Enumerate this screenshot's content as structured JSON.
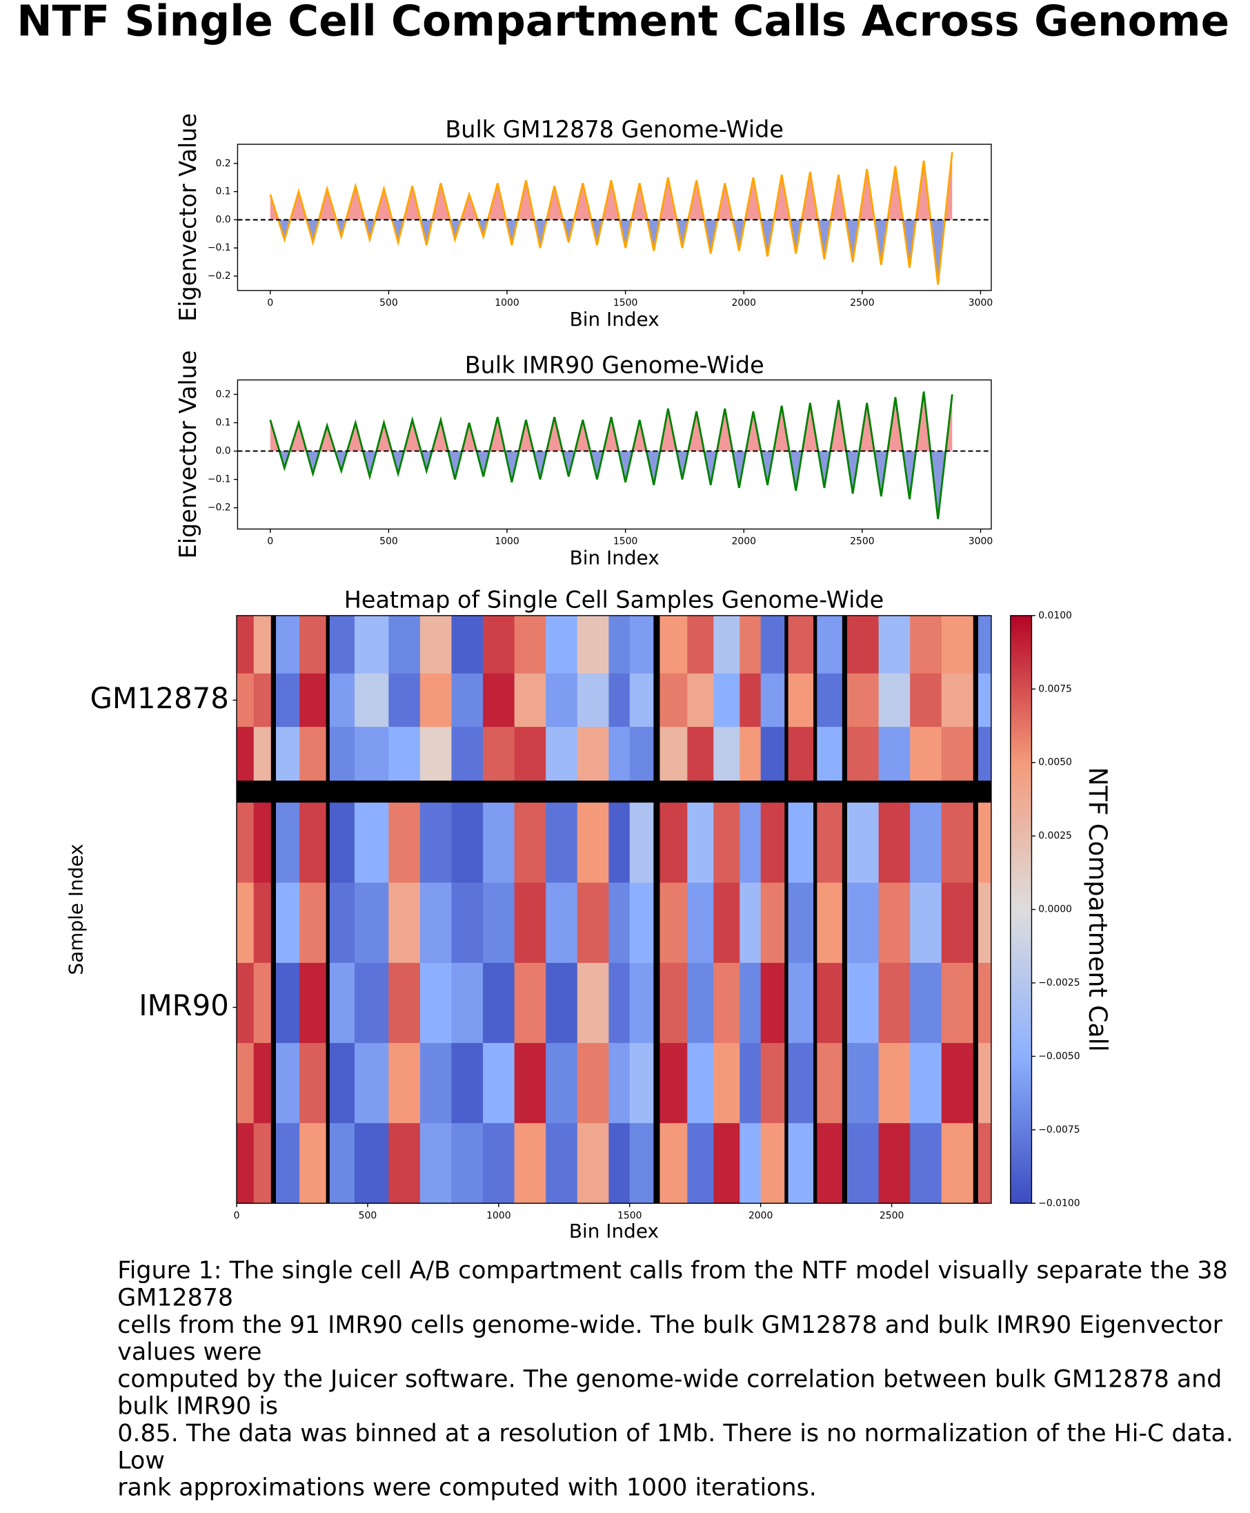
{
  "suptitle": "NTF Single Cell Compartment Calls Across Genome",
  "chart_data": [
    {
      "type": "line",
      "title": "Bulk GM12878 Genome-Wide",
      "xlabel": "Bin Index",
      "ylabel": "Eigenvector Value",
      "x": [
        0,
        60,
        120,
        180,
        240,
        300,
        360,
        420,
        480,
        540,
        600,
        660,
        720,
        780,
        840,
        900,
        960,
        1020,
        1080,
        1140,
        1200,
        1260,
        1320,
        1380,
        1440,
        1500,
        1560,
        1620,
        1680,
        1740,
        1800,
        1860,
        1920,
        1980,
        2040,
        2100,
        2160,
        2220,
        2280,
        2340,
        2400,
        2460,
        2520,
        2580,
        2640,
        2700,
        2760,
        2820,
        2880
      ],
      "values": [
        0.09,
        -0.07,
        0.1,
        -0.08,
        0.11,
        -0.06,
        0.12,
        -0.07,
        0.11,
        -0.08,
        0.12,
        -0.09,
        0.13,
        -0.07,
        0.09,
        -0.06,
        0.13,
        -0.09,
        0.14,
        -0.1,
        0.12,
        -0.08,
        0.13,
        -0.09,
        0.14,
        -0.1,
        0.13,
        -0.11,
        0.15,
        -0.1,
        0.14,
        -0.12,
        0.13,
        -0.11,
        0.15,
        -0.13,
        0.16,
        -0.12,
        0.17,
        -0.14,
        0.16,
        -0.15,
        0.18,
        -0.16,
        0.19,
        -0.17,
        0.21,
        -0.23,
        0.24
      ],
      "color": "#ffa500",
      "fill_positive": "#f08080",
      "fill_negative": "#6b7fd7",
      "hline": 0,
      "xlim": [
        -138,
        3045
      ],
      "xticks": [
        0,
        500,
        1000,
        1500,
        2000,
        2500,
        3000
      ],
      "ylim": [
        -0.251,
        0.268
      ],
      "yticks": [
        {
          "value": -0.2,
          "label": "−0.2"
        },
        {
          "value": -0.1,
          "label": "−0.1"
        },
        {
          "value": 0,
          "label": "0.0"
        },
        {
          "value": 0.1,
          "label": "0.1"
        },
        {
          "value": 0.2,
          "label": "0.2"
        }
      ]
    },
    {
      "type": "line",
      "title": "Bulk IMR90 Genome-Wide",
      "xlabel": "Bin Index",
      "ylabel": "Eigenvector Value",
      "x": [
        0,
        60,
        120,
        180,
        240,
        300,
        360,
        420,
        480,
        540,
        600,
        660,
        720,
        780,
        840,
        900,
        960,
        1020,
        1080,
        1140,
        1200,
        1260,
        1320,
        1380,
        1440,
        1500,
        1560,
        1620,
        1680,
        1740,
        1800,
        1860,
        1920,
        1980,
        2040,
        2100,
        2160,
        2220,
        2280,
        2340,
        2400,
        2460,
        2520,
        2580,
        2640,
        2700,
        2760,
        2820,
        2880
      ],
      "values": [
        0.11,
        -0.06,
        0.1,
        -0.08,
        0.09,
        -0.07,
        0.1,
        -0.09,
        0.1,
        -0.08,
        0.11,
        -0.07,
        0.11,
        -0.1,
        0.1,
        -0.09,
        0.12,
        -0.11,
        0.11,
        -0.1,
        0.12,
        -0.09,
        0.11,
        -0.1,
        0.12,
        -0.11,
        0.11,
        -0.12,
        0.15,
        -0.1,
        0.14,
        -0.12,
        0.15,
        -0.13,
        0.14,
        -0.12,
        0.16,
        -0.14,
        0.17,
        -0.13,
        0.18,
        -0.15,
        0.17,
        -0.16,
        0.19,
        -0.17,
        0.21,
        -0.24,
        0.2
      ],
      "color": "#008000",
      "fill_positive": "#f08080",
      "fill_negative": "#6b7fd7",
      "hline": 0,
      "xlim": [
        -138,
        3045
      ],
      "xticks": [
        0,
        500,
        1000,
        1500,
        2000,
        2500,
        3000
      ],
      "ylim": [
        -0.275,
        0.251
      ],
      "yticks": [
        {
          "value": -0.2,
          "label": "−0.2"
        },
        {
          "value": -0.1,
          "label": "−0.1"
        },
        {
          "value": 0,
          "label": "0.0"
        },
        {
          "value": 0.1,
          "label": "0.1"
        },
        {
          "value": 0.2,
          "label": "0.2"
        }
      ]
    },
    {
      "type": "heatmap",
      "title": "Heatmap of Single Cell Samples Genome-Wide",
      "xlabel": "Bin Index",
      "ylabel": "Sample Index",
      "colormap": "coolwarm",
      "nan_color": "#000000",
      "x_edges": [
        0,
        65,
        130,
        150,
        240,
        340,
        355,
        450,
        580,
        700,
        820,
        940,
        1060,
        1180,
        1300,
        1420,
        1500,
        1590,
        1615,
        1720,
        1820,
        1920,
        2000,
        2090,
        2105,
        2200,
        2215,
        2310,
        2330,
        2450,
        2570,
        2690,
        2810,
        2830,
        2880
      ],
      "y_edges": [
        0,
        13,
        25,
        37,
        42,
        60,
        78,
        96,
        114,
        132
      ],
      "values": [
        [
          0.008,
          0.004,
          null,
          -0.006,
          0.007,
          null,
          -0.008,
          -0.004,
          -0.007,
          0.003,
          -0.009,
          0.008,
          0.006,
          -0.005,
          0.002,
          -0.007,
          -0.006,
          null,
          0.005,
          0.007,
          -0.003,
          0.006,
          -0.008,
          null,
          0.007,
          null,
          -0.006,
          null,
          0.008,
          -0.004,
          0.006,
          0.005,
          null,
          -0.007
        ],
        [
          0.006,
          0.007,
          null,
          -0.008,
          0.009,
          null,
          -0.006,
          -0.002,
          -0.008,
          0.005,
          -0.007,
          0.009,
          0.004,
          -0.006,
          -0.003,
          -0.008,
          -0.004,
          null,
          0.006,
          0.004,
          -0.005,
          0.008,
          -0.006,
          null,
          0.005,
          null,
          -0.008,
          null,
          0.006,
          -0.002,
          0.007,
          0.004,
          null,
          -0.005
        ],
        [
          0.009,
          0.003,
          null,
          -0.004,
          0.006,
          null,
          -0.007,
          -0.006,
          -0.005,
          0.001,
          -0.008,
          0.007,
          0.008,
          -0.004,
          0.004,
          -0.006,
          -0.007,
          null,
          0.003,
          0.008,
          -0.002,
          0.005,
          -0.009,
          null,
          0.008,
          null,
          -0.005,
          null,
          0.007,
          -0.006,
          0.005,
          0.006,
          null,
          -0.008
        ],
        [
          null,
          null,
          null,
          null,
          null,
          null,
          null,
          null,
          null,
          null,
          null,
          null,
          null,
          null,
          null,
          null,
          null,
          null,
          null,
          null,
          null,
          null,
          null,
          null,
          null,
          null,
          null,
          null,
          null,
          null,
          null,
          null,
          null,
          null
        ],
        [
          0.007,
          0.009,
          null,
          -0.007,
          0.008,
          null,
          -0.009,
          -0.005,
          0.006,
          -0.008,
          -0.009,
          -0.006,
          0.007,
          -0.008,
          0.005,
          -0.009,
          -0.003,
          null,
          0.008,
          -0.004,
          0.007,
          -0.006,
          0.008,
          null,
          -0.005,
          null,
          0.007,
          null,
          -0.004,
          0.008,
          -0.006,
          0.007,
          null,
          0.005
        ],
        [
          0.005,
          0.008,
          null,
          -0.005,
          0.006,
          null,
          -0.008,
          -0.007,
          0.004,
          -0.006,
          -0.008,
          -0.007,
          0.008,
          -0.006,
          0.007,
          -0.007,
          -0.005,
          null,
          0.006,
          -0.006,
          0.008,
          -0.004,
          0.006,
          null,
          -0.007,
          null,
          0.005,
          null,
          -0.006,
          0.006,
          -0.004,
          0.008,
          null,
          0.003
        ],
        [
          0.008,
          0.006,
          null,
          -0.009,
          0.009,
          null,
          -0.006,
          -0.008,
          0.007,
          -0.005,
          -0.006,
          -0.009,
          0.006,
          -0.009,
          0.003,
          -0.008,
          -0.006,
          null,
          0.007,
          -0.007,
          0.006,
          -0.007,
          0.009,
          null,
          -0.006,
          null,
          0.008,
          null,
          -0.005,
          0.007,
          -0.007,
          0.006,
          null,
          0.006
        ],
        [
          0.006,
          0.009,
          null,
          -0.006,
          0.007,
          null,
          -0.009,
          -0.006,
          0.005,
          -0.007,
          -0.009,
          -0.005,
          0.009,
          -0.007,
          0.006,
          -0.006,
          -0.004,
          null,
          0.009,
          -0.005,
          0.005,
          -0.008,
          0.007,
          null,
          -0.008,
          null,
          0.006,
          null,
          -0.007,
          0.005,
          -0.005,
          0.009,
          null,
          0.004
        ],
        [
          0.009,
          0.007,
          null,
          -0.008,
          0.005,
          null,
          -0.007,
          -0.009,
          0.008,
          -0.006,
          -0.007,
          -0.008,
          0.005,
          -0.008,
          0.004,
          -0.009,
          -0.007,
          null,
          0.005,
          -0.008,
          0.009,
          -0.005,
          0.005,
          null,
          -0.005,
          null,
          0.009,
          null,
          -0.008,
          0.009,
          -0.008,
          0.005,
          null,
          0.007
        ]
      ],
      "xlim": [
        0,
        2880
      ],
      "xticks": [
        0,
        500,
        1000,
        1500,
        2000,
        2500
      ],
      "ylim": [
        0,
        132
      ],
      "yticks": [
        {
          "value": 19,
          "label": "GM12878"
        },
        {
          "value": 88,
          "label": "IMR90"
        }
      ],
      "colorbar": {
        "label": "NTF Compartment Call",
        "lim": [
          -0.01,
          0.01
        ],
        "ticks": [
          {
            "value": -0.01,
            "label": "−0.0100"
          },
          {
            "value": -0.0075,
            "label": "−0.0075"
          },
          {
            "value": -0.005,
            "label": "−0.0050"
          },
          {
            "value": -0.0025,
            "label": "−0.0025"
          },
          {
            "value": 0,
            "label": "0.0000"
          },
          {
            "value": 0.0025,
            "label": "0.0025"
          },
          {
            "value": 0.005,
            "label": "0.0050"
          },
          {
            "value": 0.0075,
            "label": "0.0075"
          },
          {
            "value": 0.01,
            "label": "0.0100"
          }
        ]
      }
    }
  ],
  "caption": {
    "lines": [
      "Figure 1: The single cell A/B compartment calls from the NTF model visually separate the 38",
      "GM12878",
      "cells from the 91 IMR90 cells genome-wide. The bulk GM12878 and bulk IMR90 Eigenvector",
      "values were",
      "computed by the Juicer software. The genome-wide correlation between bulk GM12878 and",
      "bulk IMR90 is",
      "0.85. The data was binned at a resolution of 1Mb. There is no normalization of the Hi-C data.",
      "Low",
      "rank approximations were computed with 1000 iterations."
    ]
  }
}
